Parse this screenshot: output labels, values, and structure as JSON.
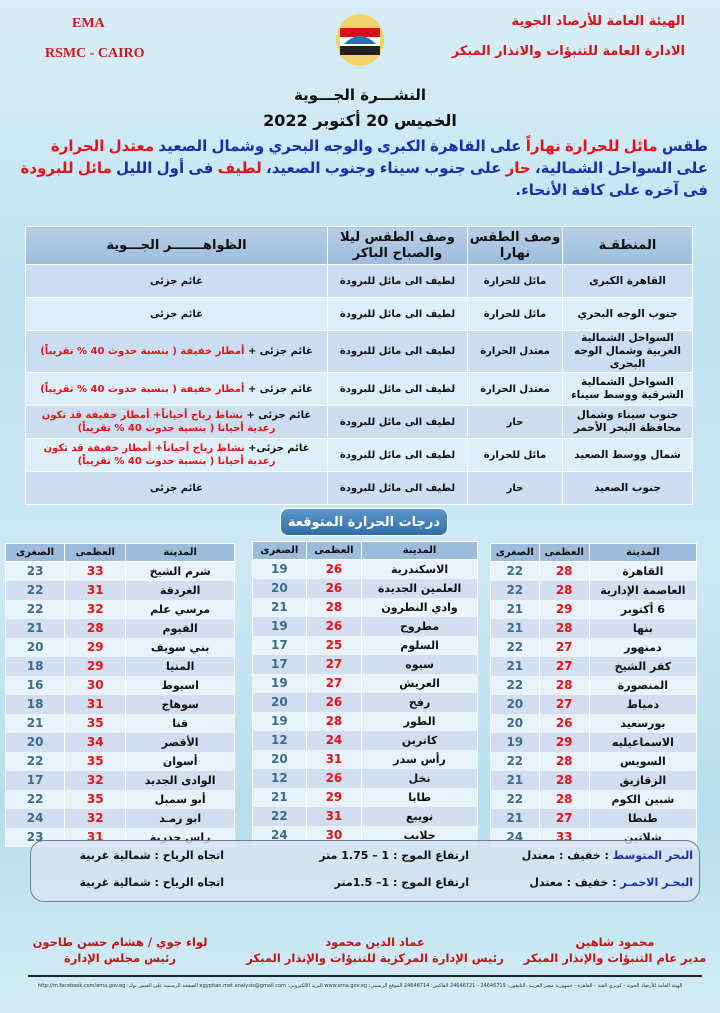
{
  "header": {
    "left_line1": "EMA",
    "left_line2": "RSMC - CAIRO",
    "right_line1": "الهيئة العامة للأرصاد الجوية",
    "right_line2": "الادارة العامة للتنبؤات والانذار المبكر",
    "logo_icon": "ema-logo-icon"
  },
  "title": "النشـــرة الجـــوية",
  "date": "الخميس 20 أكتوبر 2022",
  "summary": [
    [
      {
        "t": "طقس ",
        "c": "blue"
      },
      {
        "t": "مائل للحرارة نهاراً",
        "c": "red"
      },
      {
        "t": " على القاهرة الكبرى والوجه البحري وشمال الصعيد ",
        "c": "blue"
      },
      {
        "t": "معتدل الحرارة",
        "c": "red"
      }
    ],
    [
      {
        "t": "على السواحل الشمالية، ",
        "c": "blue"
      },
      {
        "t": "حار",
        "c": "red"
      },
      {
        "t": " على جنوب سيناء وجنوب الصعيد، ",
        "c": "blue"
      },
      {
        "t": "لطيف",
        "c": "red"
      },
      {
        "t": " فى أول الليل ",
        "c": "blue"
      },
      {
        "t": "مائل للبرودة",
        "c": "red"
      }
    ],
    [
      {
        "t": "فى آخره على كافة الأنحاء.",
        "c": "blue"
      }
    ]
  ],
  "regions": {
    "headers": [
      "المنطقـة",
      "وصف الطقس نهارا",
      "وصف الطقس ليلا والصباح الباكر",
      "الظواهـــــــر الجـــوية"
    ],
    "rows": [
      {
        "region": "القاهرة الكبرى",
        "day": "مائل للحرارة",
        "night": "لطيف الى مائل للبرودة",
        "phen": [
          {
            "t": "غائم جزئى",
            "c": "dark"
          }
        ]
      },
      {
        "region": "جنوب الوجه البحري",
        "day": "مائل للحرارة",
        "night": "لطيف الى مائل للبرودة",
        "phen": [
          {
            "t": "غائم جزئى",
            "c": "dark"
          }
        ]
      },
      {
        "region": "السواحل الشمالية الغربية وشمال الوجه البحرى",
        "day": "معتدل الحرارة",
        "night": "لطيف الى مائل للبرودة",
        "phen": [
          {
            "t": "غائم جزئى + ",
            "c": "dark"
          },
          {
            "t": "أمطار خفيفة ( بنسبة حدوث 40 % تقريباً)",
            "c": "red"
          }
        ]
      },
      {
        "region": "السواحل الشمالية الشرقية ووسط سيناء",
        "day": "معتدل الحرارة",
        "night": "لطيف الى مائل للبرودة",
        "phen": [
          {
            "t": "غائم جزئى + ",
            "c": "dark"
          },
          {
            "t": "أمطار خفيفة ( بنسبة حدوث 40 % تقريباً)",
            "c": "red"
          }
        ]
      },
      {
        "region": "جنوب سيناء وشمال محافظة البحر الأحمر",
        "day": "حار",
        "night": "لطيف الى مائل للبرودة",
        "phen": [
          {
            "t": "غائم جزئى + ",
            "c": "dark"
          },
          {
            "t": "نشاط رياح أحياناً+ أمطار خفيفة قد تكون رعدية أحيانا ( بنسبة حدوث 40 % تقريباً)",
            "c": "red"
          }
        ]
      },
      {
        "region": "شمال ووسط الصعيد",
        "day": "مائل للحرارة",
        "night": "لطيف الى مائل للبرودة",
        "phen": [
          {
            "t": "غائم جزئى+ ",
            "c": "dark"
          },
          {
            "t": "نشاط رياح أحياناً+ أمطار خفيفة قد تكون رعدية أحيانا ( بنسبة حدوث 40 % تقريباً)",
            "c": "red"
          }
        ]
      },
      {
        "region": "جنوب الصعيد",
        "day": "حار",
        "night": "لطيف الى مائل للبرودة",
        "phen": [
          {
            "t": "غائم جزئى",
            "c": "dark"
          }
        ]
      }
    ]
  },
  "temps": {
    "title": "درجات الحرارة المتوقعة",
    "headers": [
      "المدينة",
      "العظمى",
      "الصغرى"
    ],
    "tables": [
      [
        [
          "القاهرة",
          28,
          22
        ],
        [
          "العاصمة الإدارية",
          28,
          22
        ],
        [
          "6 أكتوبر",
          29,
          21
        ],
        [
          "بنها",
          28,
          21
        ],
        [
          "دمنهور",
          27,
          22
        ],
        [
          "كفر الشيخ",
          27,
          21
        ],
        [
          "المنصورة",
          28,
          22
        ],
        [
          "دمياط",
          27,
          20
        ],
        [
          "بورسعيد",
          26,
          20
        ],
        [
          "الاسماعيليه",
          29,
          19
        ],
        [
          "السويس",
          28,
          22
        ],
        [
          "الزقازيق",
          28,
          21
        ],
        [
          "شبين الكوم",
          28,
          22
        ],
        [
          "طنطا",
          27,
          21
        ],
        [
          "شلاتين",
          33,
          24
        ]
      ],
      [
        [
          "الاسكندرية",
          26,
          19
        ],
        [
          "العلمين الجديدة",
          26,
          20
        ],
        [
          "وادي النطرون",
          28,
          21
        ],
        [
          "مطروح",
          26,
          19
        ],
        [
          "السلوم",
          25,
          17
        ],
        [
          "سيوه",
          27,
          17
        ],
        [
          "العريش",
          27,
          19
        ],
        [
          "رفح",
          26,
          20
        ],
        [
          "الطور",
          28,
          19
        ],
        [
          "كاترين",
          24,
          12
        ],
        [
          "رأس سدر",
          31,
          20
        ],
        [
          "نخل",
          26,
          12
        ],
        [
          "طابا",
          29,
          21
        ],
        [
          "نويبع",
          31,
          22
        ],
        [
          "حلايب",
          30,
          24
        ]
      ],
      [
        [
          "شرم الشيخ",
          33,
          23
        ],
        [
          "الغردقة",
          31,
          22
        ],
        [
          "مرسي علم",
          32,
          22
        ],
        [
          "الفيوم",
          28,
          21
        ],
        [
          "بني سويف",
          29,
          20
        ],
        [
          "المنيا",
          29,
          18
        ],
        [
          "اسيوط",
          30,
          16
        ],
        [
          "سوهاج",
          31,
          18
        ],
        [
          "قنا",
          35,
          21
        ],
        [
          "الأقصر",
          34,
          20
        ],
        [
          "أسوان",
          35,
          22
        ],
        [
          "الوادى الجديد",
          32,
          17
        ],
        [
          "أبو سمبل",
          35,
          22
        ],
        [
          "ابو رمـد",
          32,
          24
        ],
        [
          "راس حدربة",
          31,
          23
        ]
      ]
    ]
  },
  "sea": [
    {
      "name": "البحر المتوسط",
      "state": " : خفيف : معتدل",
      "wave": "ارتفاع الموج :  1  – 1.75 متر",
      "wind": "اتجاه الرياح :  شمالية غربية"
    },
    {
      "name": "البحـر الاحمـر",
      "state": " : خفيف : معتدل",
      "wave": "ارتفاع الموج :  1– 1.5متر",
      "wind": "اتجاه الرياح :  شمالية غربية"
    }
  ],
  "signatures": [
    {
      "name": "محمود شاهين",
      "title": "مدير عام التنبؤات والإنذار المبكر"
    },
    {
      "name": "عماد الدين محمود",
      "title": "رئيس الإدارة المركزية للتنبؤات والإنذار المبكر"
    },
    {
      "name": "لواء جوي / هشام حسن طاحون",
      "title": "رئيس مجلس الإدارة"
    }
  ],
  "footer": "الهيئة العامة للأرصاد الجوية - كوبري القبة - القاهرة - جمهورية مصر العربية. التليفون: 24646719 - 24646721 الفاكس: 24646714 الموقع الرسمي: www.ema.gov.eg البريد الالكتروني: egyptian.met.analysis@gmail.com الصفحة الرسمية على الفيس بوك: http://m.facebook.com/ema.gov.eg",
  "colors": {
    "red": "#e0141a",
    "blue": "#1c2fa8",
    "table_header": "#9dbcdc",
    "pill": "#2f6ea8"
  }
}
